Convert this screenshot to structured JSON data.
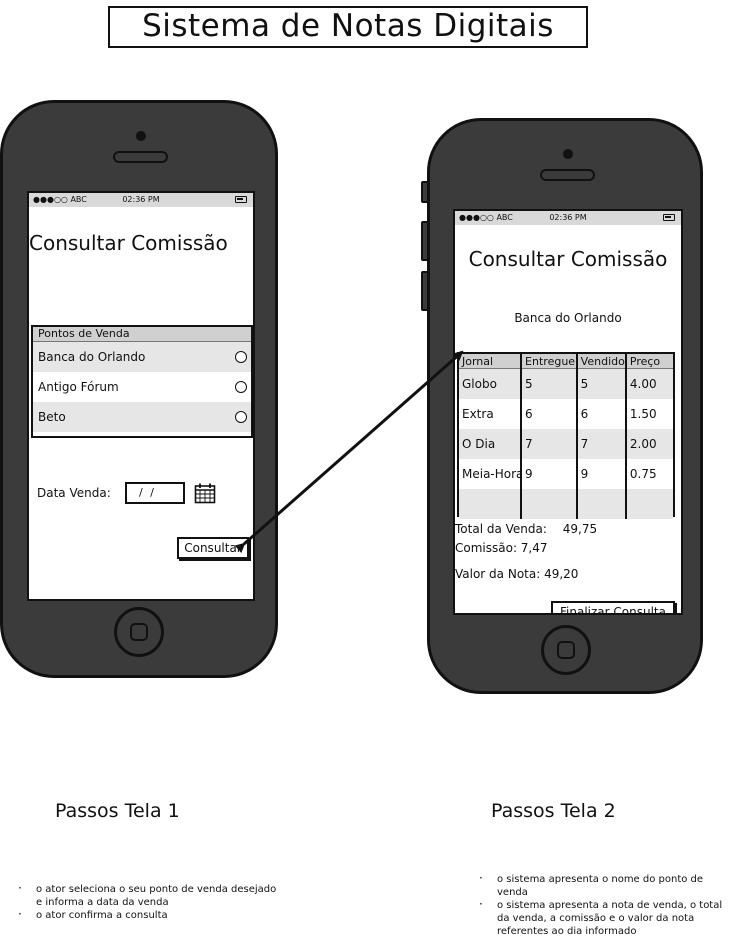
{
  "header": {
    "title": "Sistema de Notas Digitais"
  },
  "status_bar": {
    "carrier": "●●●○○ ABC",
    "time": "02:36 PM"
  },
  "screen1": {
    "title": "Consultar Comissão",
    "list": {
      "header": "Pontos de Venda",
      "items": [
        {
          "label": "Banca do Orlando"
        },
        {
          "label": "Antigo Fórum"
        },
        {
          "label": "Beto"
        }
      ]
    },
    "date_label": "Data Venda:",
    "date_value": "/ /",
    "consultar_label": "Consultar"
  },
  "screen2": {
    "title": "Consultar Comissão",
    "subtitle": "Banca do Orlando",
    "table": {
      "headers": [
        "Jornal",
        "Entregue",
        "Vendido",
        "Preço"
      ],
      "rows": [
        [
          "Globo",
          "5",
          "5",
          "4.00"
        ],
        [
          "Extra",
          "6",
          "6",
          "1.50"
        ],
        [
          "O Dia",
          "7",
          "7",
          "2.00"
        ],
        [
          "Meia-Hora",
          "9",
          "9",
          "0.75"
        ]
      ]
    },
    "total_label": "Total da Venda:",
    "total_value": "49,75",
    "comissao_text": "Comissão: 7,47",
    "valor_nota_text": "Valor da Nota: 49,20",
    "finalizar_label": "Finalizar Consulta"
  },
  "steps1": {
    "heading": "Passos Tela 1",
    "items": [
      "o ator seleciona o seu ponto de venda desejado e informa a data da venda",
      "o ator confirma a consulta"
    ]
  },
  "steps2": {
    "heading": "Passos Tela 2",
    "items": [
      "o sistema apresenta o nome do ponto de venda",
      "o sistema apresenta a nota de venda, o total da venda, a comissão e o valor da nota referentes ao dia informado"
    ]
  }
}
